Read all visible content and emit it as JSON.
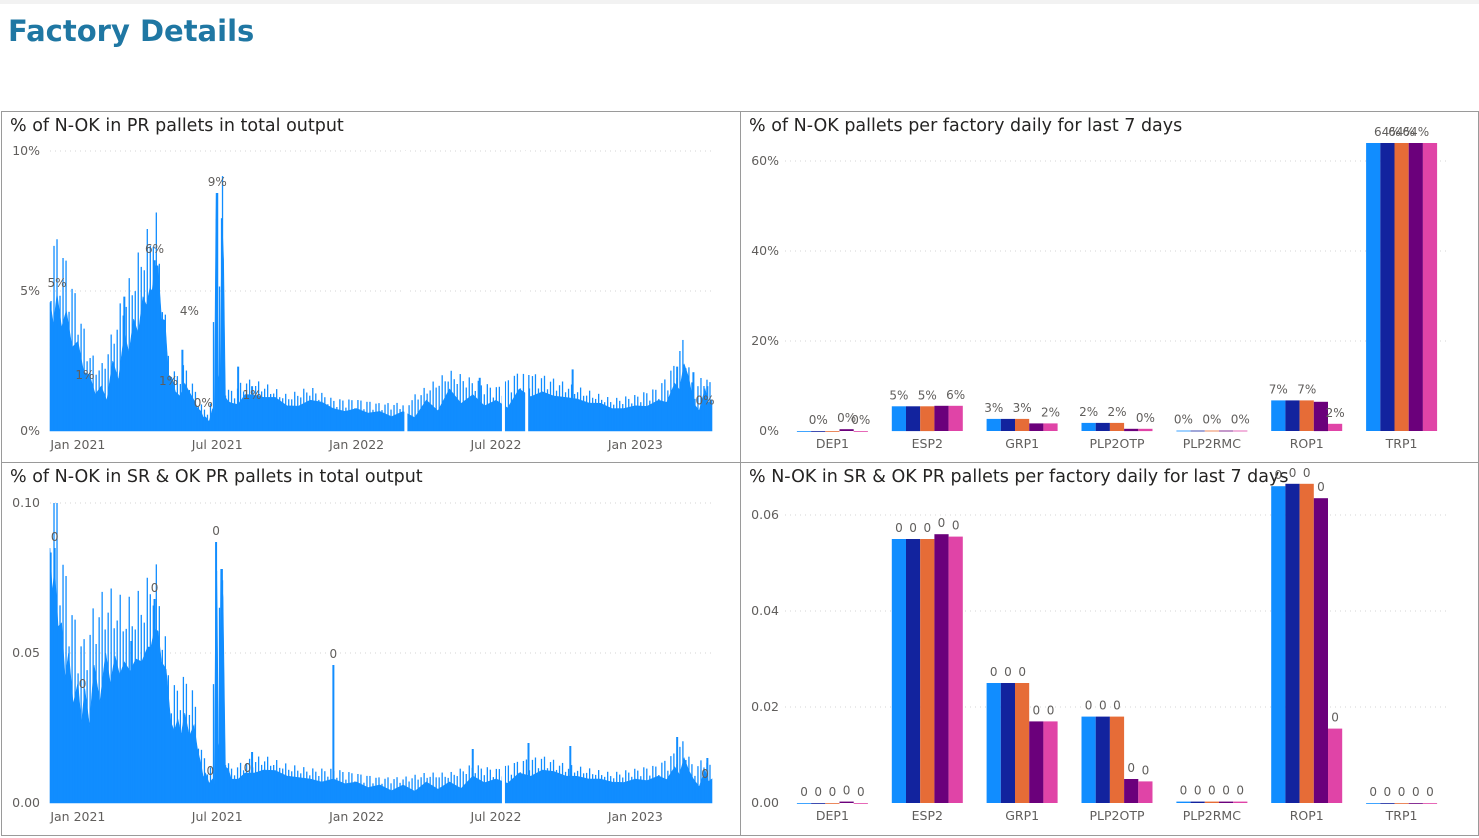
{
  "page": {
    "title": "Factory Details"
  },
  "colors": {
    "series": [
      "#118DFF",
      "#12239E",
      "#E66C37",
      "#6B007B",
      "#E044A7"
    ],
    "line_fill": "#118DFF",
    "title": "#1f77a3"
  },
  "chart_data": [
    {
      "id": "pr-total",
      "type": "area",
      "title": "% of N-OK in PR pallets in total output",
      "y_ticks": [
        "0%",
        "5%",
        "10%"
      ],
      "y_tick_values": [
        0,
        5,
        10
      ],
      "ylim": [
        0,
        10
      ],
      "x_ticks": [
        "Jan 2021",
        "Jul 2021",
        "Jan 2022",
        "Jul 2022",
        "Jan 2023"
      ],
      "x_tick_months": [
        0,
        6,
        12,
        18,
        24
      ],
      "x_range_months": [
        -1.2,
        27.3
      ],
      "gaps_months": [
        14.1,
        18.3,
        19.3
      ],
      "series": [
        {
          "values": [
            [
              -1.2,
              4.6
            ],
            [
              -0.9,
              4.9
            ],
            [
              -0.5,
              4.3
            ],
            [
              0.0,
              3.2
            ],
            [
              0.5,
              2.0
            ],
            [
              1.0,
              1.6
            ],
            [
              1.5,
              2.5
            ],
            [
              2.0,
              3.5
            ],
            [
              2.4,
              4.0
            ],
            [
              2.8,
              4.8
            ],
            [
              3.1,
              5.1
            ],
            [
              3.3,
              5.9
            ],
            [
              3.6,
              4.0
            ],
            [
              3.9,
              2.0
            ],
            [
              4.2,
              1.4
            ],
            [
              4.6,
              1.7
            ],
            [
              5.0,
              1.1
            ],
            [
              5.3,
              0.7
            ],
            [
              5.5,
              0.5
            ],
            [
              5.8,
              0.8
            ],
            [
              5.95,
              8.5
            ],
            [
              6.05,
              2.0
            ],
            [
              6.2,
              7.6
            ],
            [
              6.35,
              1.2
            ],
            [
              6.6,
              1.0
            ],
            [
              7.2,
              1.3
            ],
            [
              8.0,
              1.2
            ],
            [
              9.0,
              0.9
            ],
            [
              10.0,
              1.1
            ],
            [
              11.0,
              0.8
            ],
            [
              12.0,
              0.8
            ],
            [
              13.0,
              0.7
            ],
            [
              14.0,
              0.7
            ],
            [
              15.0,
              1.1
            ],
            [
              16.0,
              1.5
            ],
            [
              17.0,
              1.3
            ],
            [
              18.0,
              1.1
            ],
            [
              19.0,
              1.5
            ],
            [
              20.0,
              1.4
            ],
            [
              21.0,
              1.2
            ],
            [
              22.0,
              1.0
            ],
            [
              23.0,
              0.8
            ],
            [
              24.0,
              0.9
            ],
            [
              25.0,
              1.1
            ],
            [
              25.7,
              1.7
            ],
            [
              26.1,
              2.4
            ],
            [
              26.5,
              1.0
            ],
            [
              27.0,
              1.5
            ],
            [
              27.3,
              1.1
            ]
          ]
        }
      ],
      "spikes": [
        [
          2.0,
          4.8
        ],
        [
          3.3,
          6.1
        ],
        [
          4.5,
          2.9
        ],
        [
          6.0,
          8.5
        ],
        [
          6.2,
          7.6
        ],
        [
          6.9,
          2.3
        ],
        [
          7.5,
          1.6
        ],
        [
          17.3,
          1.9
        ],
        [
          19.4,
          2.0
        ],
        [
          21.3,
          2.2
        ],
        [
          25.8,
          2.3
        ],
        [
          26.5,
          2.1
        ],
        [
          27.1,
          1.6
        ]
      ],
      "labels": [
        {
          "x": -0.9,
          "y": 4.9,
          "text": "5%"
        },
        {
          "x": 3.3,
          "y": 6.1,
          "text": "6%"
        },
        {
          "x": 4.8,
          "y": 3.9,
          "text": "4%"
        },
        {
          "x": 0.3,
          "y": 1.6,
          "text": "1%"
        },
        {
          "x": 3.9,
          "y": 1.4,
          "text": "1%"
        },
        {
          "x": 5.4,
          "y": 0.6,
          "text": "0%"
        },
        {
          "x": 6.0,
          "y": 8.5,
          "text": "9%"
        },
        {
          "x": 7.5,
          "y": 0.9,
          "text": "1%"
        },
        {
          "x": 27.0,
          "y": 0.7,
          "text": "0%"
        }
      ]
    },
    {
      "id": "pr-factory",
      "type": "bar",
      "title": "% of N-OK pallets per factory daily for last 7 days",
      "y_ticks": [
        "0%",
        "20%",
        "40%",
        "60%"
      ],
      "y_tick_values": [
        0,
        20,
        40,
        60
      ],
      "ylim": [
        0,
        70
      ],
      "categories": [
        "DEP1",
        "ESP2",
        "GRP1",
        "PLP2OTP",
        "PLP2RMC",
        "ROP1",
        "TRP1"
      ],
      "series": [
        {
          "values": [
            0,
            5.5,
            2.7,
            1.8,
            0.1,
            6.8,
            64
          ]
        },
        {
          "values": [
            0,
            5.5,
            2.7,
            1.8,
            0.1,
            6.8,
            64
          ]
        },
        {
          "values": [
            0,
            5.5,
            2.7,
            1.8,
            0.1,
            6.8,
            64
          ]
        },
        {
          "values": [
            0.4,
            5.6,
            1.7,
            0.5,
            0.1,
            6.5,
            64
          ]
        },
        {
          "values": [
            0,
            5.6,
            1.7,
            0.5,
            0.1,
            1.6,
            64
          ]
        }
      ],
      "label_texts": [
        [
          "",
          "0%",
          "",
          "0%",
          "0%"
        ],
        [
          "5%",
          "",
          "5%",
          "",
          "6%"
        ],
        [
          "3%",
          "",
          "3%",
          "",
          "2%"
        ],
        [
          "2%",
          "",
          "2%",
          "",
          "0%"
        ],
        [
          "0%",
          "",
          "0%",
          "",
          "0%"
        ],
        [
          "7%",
          "",
          "7%",
          "",
          "2%"
        ],
        [
          "",
          "64%",
          "64%",
          "64%",
          ""
        ]
      ]
    },
    {
      "id": "sr-total",
      "type": "area",
      "title": "% of N-OK in SR & OK PR pallets in total output",
      "y_ticks": [
        "0.00",
        "0.05",
        "0.10"
      ],
      "y_tick_values": [
        0,
        0.05,
        0.1
      ],
      "ylim": [
        0,
        0.1
      ],
      "x_ticks": [
        "Jan 2021",
        "Jul 2021",
        "Jan 2022",
        "Jul 2022",
        "Jan 2023"
      ],
      "x_tick_months": [
        0,
        6,
        12,
        18,
        24
      ],
      "x_range_months": [
        -1.2,
        27.3
      ],
      "gaps_months": [
        18.3
      ],
      "series": [
        {
          "values": [
            [
              -1.2,
              0.085
            ],
            [
              -1.0,
              0.078
            ],
            [
              -0.7,
              0.06
            ],
            [
              -0.4,
              0.05
            ],
            [
              0.0,
              0.04
            ],
            [
              0.3,
              0.038
            ],
            [
              0.7,
              0.046
            ],
            [
              1.2,
              0.05
            ],
            [
              1.6,
              0.049
            ],
            [
              2.0,
              0.047
            ],
            [
              2.5,
              0.048
            ],
            [
              3.0,
              0.052
            ],
            [
              3.3,
              0.058
            ],
            [
              3.6,
              0.047
            ],
            [
              4.0,
              0.027
            ],
            [
              4.3,
              0.028
            ],
            [
              4.6,
              0.03
            ],
            [
              5.0,
              0.026
            ],
            [
              5.3,
              0.013
            ],
            [
              5.5,
              0.01
            ],
            [
              5.8,
              0.008
            ],
            [
              5.95,
              0.087
            ],
            [
              6.05,
              0.02
            ],
            [
              6.15,
              0.078
            ],
            [
              6.35,
              0.012
            ],
            [
              6.6,
              0.008
            ],
            [
              7.2,
              0.01
            ],
            [
              8.0,
              0.011
            ],
            [
              9.0,
              0.009
            ],
            [
              10.0,
              0.008
            ],
            [
              11.0,
              0.008
            ],
            [
              12.0,
              0.007
            ],
            [
              13.0,
              0.006
            ],
            [
              14.0,
              0.006
            ],
            [
              15.0,
              0.007
            ],
            [
              16.0,
              0.007
            ],
            [
              17.0,
              0.009
            ],
            [
              18.0,
              0.008
            ],
            [
              19.0,
              0.01
            ],
            [
              20.0,
              0.011
            ],
            [
              21.0,
              0.009
            ],
            [
              22.0,
              0.008
            ],
            [
              23.0,
              0.007
            ],
            [
              24.0,
              0.008
            ],
            [
              25.0,
              0.009
            ],
            [
              25.7,
              0.012
            ],
            [
              26.1,
              0.015
            ],
            [
              26.5,
              0.008
            ],
            [
              27.0,
              0.011
            ],
            [
              27.3,
              0.008
            ]
          ]
        }
      ],
      "spikes": [
        [
          -1.0,
          0.085
        ],
        [
          2.3,
          0.054
        ],
        [
          3.3,
          0.068
        ],
        [
          5.95,
          0.087
        ],
        [
          6.2,
          0.078
        ],
        [
          7.5,
          0.017
        ],
        [
          11.0,
          0.046
        ],
        [
          17.0,
          0.018
        ],
        [
          19.4,
          0.02
        ],
        [
          21.2,
          0.019
        ],
        [
          25.8,
          0.022
        ],
        [
          27.1,
          0.015
        ]
      ],
      "labels": [
        {
          "x": -1.0,
          "y": 0.085,
          "text": "0"
        },
        {
          "x": 3.3,
          "y": 0.068,
          "text": "0"
        },
        {
          "x": 0.2,
          "y": 0.036,
          "text": "0"
        },
        {
          "x": 5.7,
          "y": 0.007,
          "text": "0"
        },
        {
          "x": 5.95,
          "y": 0.087,
          "text": "0"
        },
        {
          "x": 7.3,
          "y": 0.008,
          "text": "0"
        },
        {
          "x": 11.0,
          "y": 0.046,
          "text": "0"
        },
        {
          "x": 27.0,
          "y": 0.006,
          "text": "0"
        }
      ]
    },
    {
      "id": "sr-factory",
      "type": "bar",
      "title": "% N-OK in SR & OK PR pallets per factory daily for last 7 days",
      "y_ticks": [
        "0.00",
        "0.02",
        "0.04",
        "0.06"
      ],
      "y_tick_values": [
        0,
        0.02,
        0.04,
        0.06
      ],
      "ylim": [
        0,
        0.07
      ],
      "categories": [
        "DEP1",
        "ESP2",
        "GRP1",
        "PLP2OTP",
        "PLP2RMC",
        "ROP1",
        "TRP1"
      ],
      "series": [
        {
          "values": [
            0,
            0.055,
            0.025,
            0.018,
            0.0003,
            0.066,
            0
          ]
        },
        {
          "values": [
            0,
            0.055,
            0.025,
            0.018,
            0.0003,
            0.0665,
            0
          ]
        },
        {
          "values": [
            0,
            0.055,
            0.025,
            0.018,
            0.0003,
            0.0665,
            0
          ]
        },
        {
          "values": [
            0.0003,
            0.056,
            0.017,
            0.005,
            0.0003,
            0.0635,
            0
          ]
        },
        {
          "values": [
            0,
            0.0555,
            0.017,
            0.0045,
            0.0003,
            0.0155,
            0
          ]
        }
      ],
      "label_texts": [
        [
          "0",
          "0",
          "0",
          "0",
          "0"
        ],
        [
          "0",
          "0",
          "0",
          "0",
          "0"
        ],
        [
          "0",
          "0",
          "0",
          "0",
          "0"
        ],
        [
          "0",
          "0",
          "0",
          "0",
          "0"
        ],
        [
          "0",
          "0",
          "0",
          "0",
          "0"
        ],
        [
          "0",
          "0",
          "0",
          "0",
          "0"
        ],
        [
          "0",
          "0",
          "0",
          "0",
          "0"
        ]
      ]
    }
  ]
}
